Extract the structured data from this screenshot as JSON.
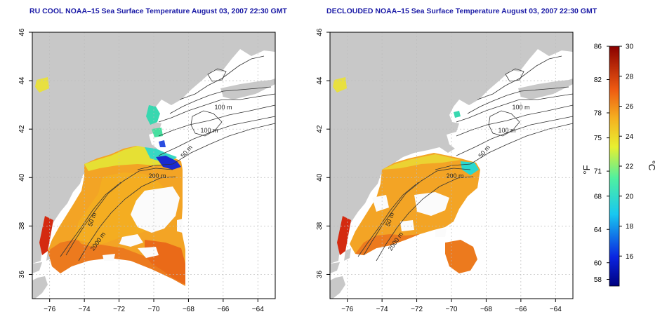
{
  "left_map": {
    "title": "RU COOL NOAA–15 Sea Surface Temperature August 03, 2007 22:30 GMT",
    "x_ticks": [
      "−76",
      "−74",
      "−72",
      "−70",
      "−68",
      "−66",
      "−64"
    ],
    "y_ticks": [
      "36",
      "38",
      "40",
      "42",
      "44",
      "46"
    ],
    "isobath_labels": [
      "100 m",
      "100 m",
      "50 m",
      "200 m",
      "50 m",
      "2000 m"
    ]
  },
  "right_map": {
    "title": "DECLOUDED NOAA–15 Sea Surface Temperature August 03, 2007 22:30 GMT",
    "x_ticks": [
      "−76",
      "−74",
      "−72",
      "−70",
      "−68",
      "−66",
      "−64"
    ],
    "y_ticks": [
      "36",
      "38",
      "40",
      "42",
      "44",
      "46"
    ],
    "isobath_labels": [
      "100 m",
      "100 m",
      "50 m",
      "200 m",
      "50 m",
      "2000 m"
    ]
  },
  "colorbar": {
    "fahrenheit_label": "°F",
    "celsius_label": "°C",
    "fahrenheit_ticks": [
      "86",
      "82",
      "78",
      "75",
      "71",
      "68",
      "64",
      "60",
      "58"
    ],
    "celsius_ticks": [
      "30",
      "28",
      "26",
      "24",
      "22",
      "20",
      "18",
      "16"
    ]
  },
  "map_extent": {
    "lon": [
      -77,
      -63
    ],
    "lat": [
      35,
      46
    ]
  },
  "sst_range_c": [
    14,
    30
  ],
  "colors": {
    "land": "#c8c8c8",
    "ocean": "#ffffff",
    "title": "#1a1aa6",
    "grid": "#bbbbbb",
    "warm": "#e8741e",
    "mid": "#f4b020",
    "cool": "#2bd8c0",
    "cold": "#1a2ad0"
  }
}
